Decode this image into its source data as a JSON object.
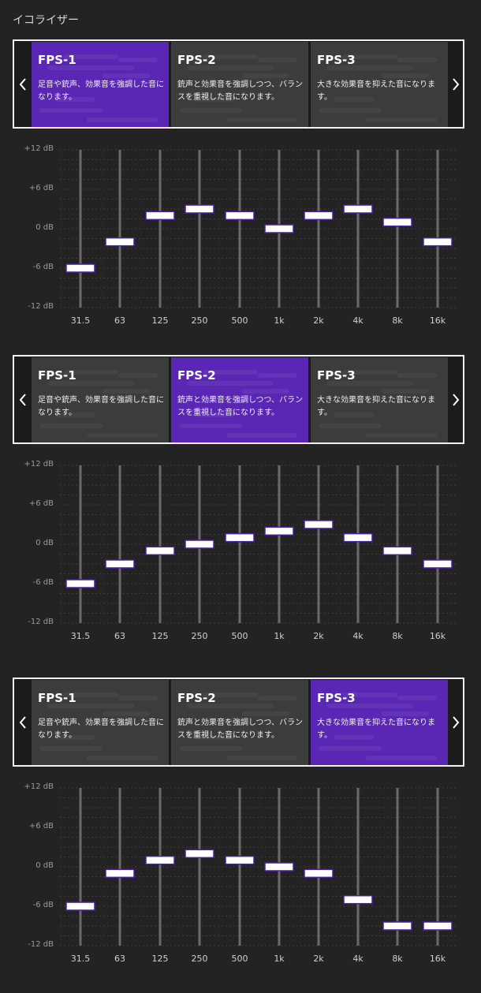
{
  "title": "イコライザー",
  "presets": [
    {
      "name": "FPS-1",
      "desc": "足音や銃声、効果音を強調した音になります。"
    },
    {
      "name": "FPS-2",
      "desc": "銃声と効果音を強調しつつ、バランスを重視した音になります。"
    },
    {
      "name": "FPS-3",
      "desc": "大きな効果音を抑えた音になります。"
    }
  ],
  "y_labels": [
    "+12 dB",
    "+6 dB",
    "0 dB",
    "-6 dB",
    "-12 dB"
  ],
  "bands": [
    "31.5",
    "63",
    "125",
    "250",
    "500",
    "1k",
    "2k",
    "4k",
    "8k",
    "16k"
  ],
  "colors": {
    "accent": "#5a27b4",
    "card": "#3c3c3c",
    "slider_border": "#4a1fa0"
  },
  "icons": {
    "prev": "chevron-left-icon",
    "next": "chevron-right-icon"
  },
  "sections": [
    {
      "selected": 0,
      "chart_data": {
        "type": "equalizer",
        "ylim": [
          -12,
          12
        ],
        "series": [
          {
            "values": [
              -6,
              -2,
              2,
              3,
              2,
              0,
              2,
              3,
              1,
              -2
            ]
          }
        ]
      }
    },
    {
      "selected": 1,
      "chart_data": {
        "type": "equalizer",
        "ylim": [
          -12,
          12
        ],
        "series": [
          {
            "values": [
              -6,
              -3,
              -1,
              0,
              1,
              2,
              3,
              1,
              -1,
              -3
            ]
          }
        ]
      }
    },
    {
      "selected": 2,
      "chart_data": {
        "type": "equalizer",
        "ylim": [
          -12,
          12
        ],
        "series": [
          {
            "values": [
              -6,
              -1,
              1,
              2,
              1,
              0,
              -1,
              -5,
              -9,
              -9
            ]
          }
        ]
      }
    }
  ]
}
